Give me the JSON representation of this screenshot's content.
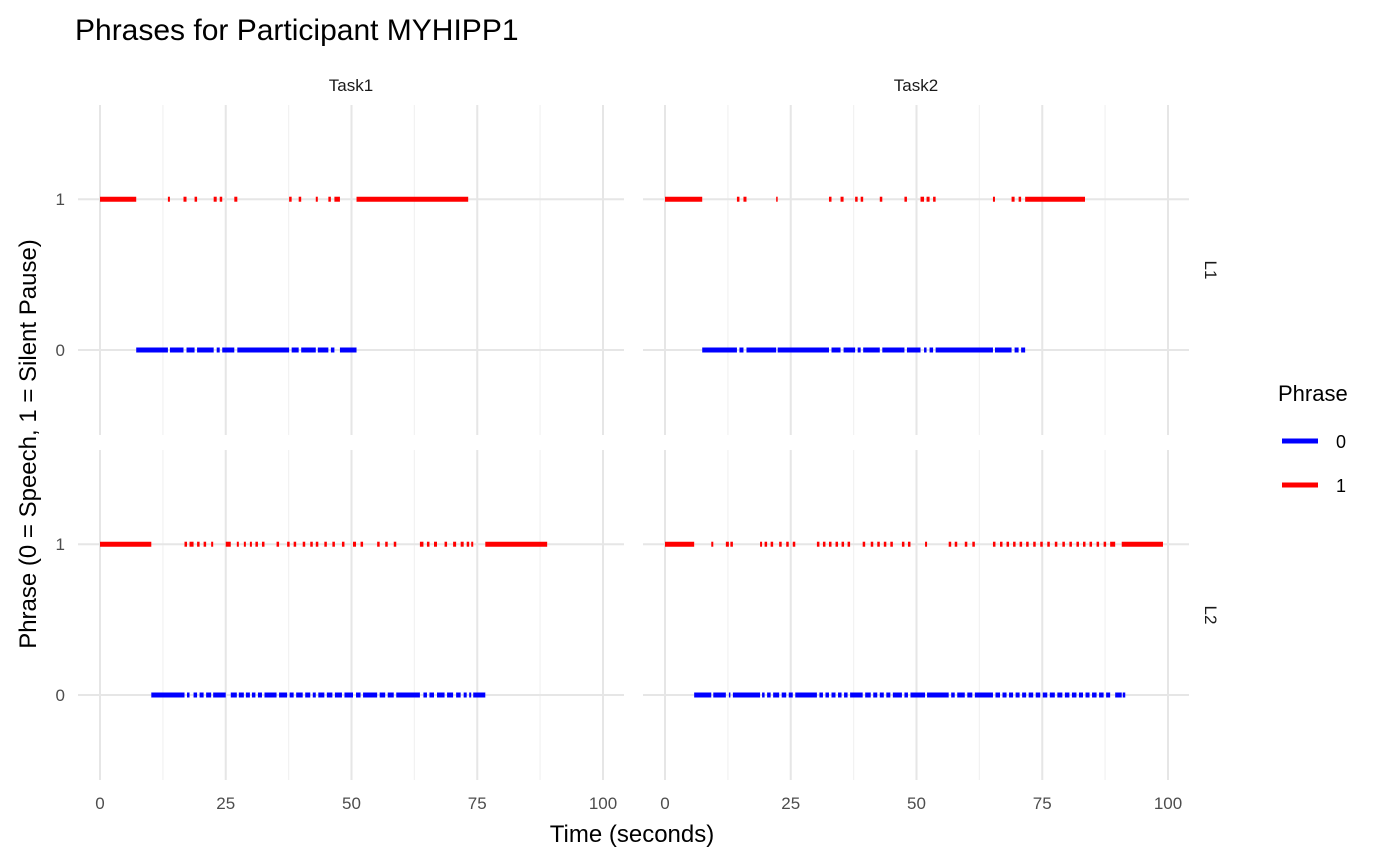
{
  "chart_data": {
    "type": "line",
    "title": "Phrases for Participant MYHIPP1",
    "xlabel": "Time (seconds)",
    "ylabel": "Phrase (0 = Speech, 1 = Silent Pause)",
    "xlim": [
      0,
      100
    ],
    "x_ticks": [
      "0",
      "25",
      "50",
      "75",
      "100"
    ],
    "y_ticks": [
      "0",
      "1"
    ],
    "grid": true,
    "legend": {
      "title": "Phrase",
      "placement": "right",
      "entries": [
        {
          "label": "0",
          "color": "#0000ff"
        },
        {
          "label": "1",
          "color": "#ff0000"
        }
      ]
    },
    "facet_columns": [
      "Task1",
      "Task2"
    ],
    "facet_rows": [
      "L1",
      "L2"
    ],
    "panels": [
      {
        "task": "Task1",
        "language": "L1",
        "series": [
          {
            "phrase": "1",
            "segments": [
              [
                0,
                7.2
              ],
              [
                13.5,
                13.9
              ],
              [
                16.6,
                17.2
              ],
              [
                18.8,
                19.3
              ],
              [
                22.6,
                23.2
              ],
              [
                23.8,
                24.3
              ],
              [
                26.7,
                27.3
              ],
              [
                37.6,
                38.1
              ],
              [
                39.5,
                40.0
              ],
              [
                42.9,
                43.3
              ],
              [
                45.4,
                45.9
              ],
              [
                46.6,
                47.7
              ],
              [
                51,
                73.2
              ]
            ]
          },
          {
            "phrase": "0",
            "segments": [
              [
                7.2,
                13.5
              ],
              [
                13.9,
                16.6
              ],
              [
                17.2,
                18.8
              ],
              [
                19.3,
                22.6
              ],
              [
                23.2,
                23.8
              ],
              [
                24.3,
                26.7
              ],
              [
                27.3,
                37.6
              ],
              [
                38.1,
                39.5
              ],
              [
                40.0,
                42.9
              ],
              [
                43.3,
                45.4
              ],
              [
                45.9,
                46.6
              ],
              [
                47.7,
                51.0
              ]
            ]
          }
        ]
      },
      {
        "task": "Task2",
        "language": "L1",
        "series": [
          {
            "phrase": "1",
            "segments": [
              [
                0,
                7.4
              ],
              [
                14.3,
                14.8
              ],
              [
                15.6,
                16.2
              ],
              [
                22.1,
                22.4
              ],
              [
                32.6,
                33.1
              ],
              [
                34.9,
                35.5
              ],
              [
                37.8,
                38.3
              ],
              [
                38.9,
                39.4
              ],
              [
                42.7,
                43.2
              ],
              [
                47.6,
                48.1
              ],
              [
                50.8,
                51.5
              ],
              [
                52.0,
                52.6
              ],
              [
                53.3,
                53.8
              ],
              [
                65.2,
                65.6
              ],
              [
                68.9,
                69.5
              ],
              [
                70.3,
                70.8
              ],
              [
                71.6,
                83.5
              ]
            ]
          },
          {
            "phrase": "0",
            "segments": [
              [
                7.4,
                14.3
              ],
              [
                14.8,
                15.6
              ],
              [
                16.2,
                22.1
              ],
              [
                22.4,
                32.6
              ],
              [
                33.1,
                34.9
              ],
              [
                35.5,
                37.8
              ],
              [
                38.3,
                38.9
              ],
              [
                39.4,
                42.7
              ],
              [
                43.2,
                47.6
              ],
              [
                48.1,
                50.8
              ],
              [
                51.5,
                52.0
              ],
              [
                52.6,
                53.3
              ],
              [
                53.8,
                65.2
              ],
              [
                65.6,
                68.9
              ],
              [
                69.5,
                70.3
              ],
              [
                70.8,
                71.6
              ]
            ]
          }
        ]
      },
      {
        "task": "Task1",
        "language": "L2",
        "series": [
          {
            "phrase": "1",
            "segments": [
              [
                0,
                10.2
              ],
              [
                16.8,
                17.3
              ],
              [
                17.8,
                18.6
              ],
              [
                19.3,
                19.8
              ],
              [
                20.6,
                21.1
              ],
              [
                22.1,
                22.5
              ],
              [
                25.0,
                26.0
              ],
              [
                27.2,
                27.6
              ],
              [
                28.6,
                29.0
              ],
              [
                29.8,
                30.2
              ],
              [
                30.9,
                31.4
              ],
              [
                32.2,
                32.7
              ],
              [
                35.1,
                35.6
              ],
              [
                37.2,
                37.7
              ],
              [
                38.5,
                39.0
              ],
              [
                40.3,
                40.8
              ],
              [
                41.8,
                42.3
              ],
              [
                42.9,
                43.4
              ],
              [
                44.6,
                45.1
              ],
              [
                46.2,
                46.7
              ],
              [
                48.1,
                48.6
              ],
              [
                50.3,
                50.9
              ],
              [
                51.8,
                52.3
              ],
              [
                55.1,
                55.6
              ],
              [
                56.7,
                57.2
              ],
              [
                58.4,
                58.9
              ],
              [
                63.6,
                64.3
              ],
              [
                65.0,
                65.5
              ],
              [
                66.4,
                67.0
              ],
              [
                68.5,
                69.0
              ],
              [
                70.2,
                70.8
              ],
              [
                71.7,
                72.3
              ],
              [
                72.9,
                73.4
              ],
              [
                73.8,
                74.2
              ],
              [
                76.6,
                88.9
              ]
            ]
          },
          {
            "phrase": "0",
            "segments": [
              [
                10.2,
                16.8
              ],
              [
                17.3,
                17.8
              ],
              [
                18.6,
                19.3
              ],
              [
                19.8,
                20.6
              ],
              [
                21.1,
                22.1
              ],
              [
                22.5,
                25.0
              ],
              [
                26.0,
                27.2
              ],
              [
                27.6,
                28.6
              ],
              [
                29.0,
                29.8
              ],
              [
                30.2,
                30.9
              ],
              [
                31.4,
                32.2
              ],
              [
                32.7,
                35.1
              ],
              [
                35.6,
                37.2
              ],
              [
                37.7,
                38.5
              ],
              [
                39.0,
                40.3
              ],
              [
                40.8,
                41.8
              ],
              [
                42.3,
                42.9
              ],
              [
                43.4,
                44.6
              ],
              [
                45.1,
                46.2
              ],
              [
                46.7,
                48.1
              ],
              [
                48.6,
                50.3
              ],
              [
                50.9,
                51.8
              ],
              [
                52.3,
                55.1
              ],
              [
                55.6,
                56.7
              ],
              [
                57.2,
                58.4
              ],
              [
                58.9,
                63.6
              ],
              [
                64.3,
                65.0
              ],
              [
                65.5,
                66.4
              ],
              [
                67.0,
                68.5
              ],
              [
                69.0,
                70.2
              ],
              [
                70.8,
                71.7
              ],
              [
                72.3,
                72.9
              ],
              [
                73.4,
                73.8
              ],
              [
                74.2,
                76.6
              ]
            ]
          }
        ]
      },
      {
        "task": "Task2",
        "language": "L2",
        "series": [
          {
            "phrase": "1",
            "segments": [
              [
                0,
                5.8
              ],
              [
                9.2,
                9.6
              ],
              [
                12.1,
                12.7
              ],
              [
                13.0,
                13.5
              ],
              [
                18.9,
                19.3
              ],
              [
                19.8,
                20.3
              ],
              [
                21.0,
                21.5
              ],
              [
                22.7,
                23.2
              ],
              [
                24.1,
                24.6
              ],
              [
                25.4,
                25.9
              ],
              [
                30.2,
                30.7
              ],
              [
                31.4,
                31.9
              ],
              [
                32.6,
                33.1
              ],
              [
                33.9,
                34.4
              ],
              [
                35.1,
                35.6
              ],
              [
                36.3,
                36.8
              ],
              [
                39.3,
                39.8
              ],
              [
                40.9,
                41.4
              ],
              [
                42.2,
                42.7
              ],
              [
                43.5,
                44.0
              ],
              [
                44.8,
                45.3
              ],
              [
                47.1,
                47.6
              ],
              [
                48.3,
                48.8
              ],
              [
                51.7,
                52.1
              ],
              [
                56.4,
                56.9
              ],
              [
                57.6,
                58.1
              ],
              [
                59.6,
                60.1
              ],
              [
                61.1,
                61.6
              ],
              [
                65.2,
                65.7
              ],
              [
                66.6,
                67.1
              ],
              [
                67.9,
                68.4
              ],
              [
                69.2,
                69.7
              ],
              [
                70.5,
                71.0
              ],
              [
                71.8,
                72.3
              ],
              [
                73.2,
                73.7
              ],
              [
                74.6,
                75.1
              ],
              [
                76.0,
                76.5
              ],
              [
                77.5,
                78.0
              ],
              [
                79.0,
                79.5
              ],
              [
                80.4,
                80.9
              ],
              [
                81.8,
                82.3
              ],
              [
                83.1,
                83.6
              ],
              [
                84.4,
                84.9
              ],
              [
                85.8,
                86.3
              ],
              [
                87.2,
                87.7
              ],
              [
                88.5,
                89.5
              ],
              [
                90.8,
                99.0
              ]
            ]
          },
          {
            "phrase": "0",
            "segments": [
              [
                5.8,
                9.2
              ],
              [
                9.6,
                12.1
              ],
              [
                12.7,
                13.0
              ],
              [
                13.5,
                18.9
              ],
              [
                19.3,
                19.8
              ],
              [
                20.3,
                21.0
              ],
              [
                21.5,
                22.7
              ],
              [
                23.2,
                24.1
              ],
              [
                24.6,
                25.4
              ],
              [
                25.9,
                30.2
              ],
              [
                30.7,
                31.4
              ],
              [
                31.9,
                32.6
              ],
              [
                33.1,
                33.9
              ],
              [
                34.4,
                35.1
              ],
              [
                35.6,
                36.3
              ],
              [
                36.8,
                39.3
              ],
              [
                39.8,
                40.9
              ],
              [
                41.4,
                42.2
              ],
              [
                42.7,
                43.5
              ],
              [
                44.0,
                44.8
              ],
              [
                45.3,
                47.1
              ],
              [
                47.6,
                48.3
              ],
              [
                48.8,
                51.7
              ],
              [
                52.1,
                56.4
              ],
              [
                56.9,
                57.6
              ],
              [
                58.1,
                59.6
              ],
              [
                60.1,
                61.1
              ],
              [
                61.6,
                65.2
              ],
              [
                65.7,
                66.6
              ],
              [
                67.1,
                67.9
              ],
              [
                68.4,
                69.2
              ],
              [
                69.7,
                70.5
              ],
              [
                71.0,
                71.8
              ],
              [
                72.3,
                73.2
              ],
              [
                73.7,
                74.6
              ],
              [
                75.1,
                76.0
              ],
              [
                76.5,
                77.5
              ],
              [
                78.0,
                79.0
              ],
              [
                79.5,
                80.4
              ],
              [
                80.9,
                81.8
              ],
              [
                82.3,
                83.1
              ],
              [
                83.6,
                84.4
              ],
              [
                84.9,
                85.8
              ],
              [
                86.3,
                87.2
              ],
              [
                87.7,
                88.5
              ],
              [
                89.5,
                90.8
              ],
              [
                91.0,
                91.5
              ]
            ]
          }
        ]
      }
    ],
    "colors": {
      "0": "#0000ff",
      "1": "#ff0000"
    }
  }
}
